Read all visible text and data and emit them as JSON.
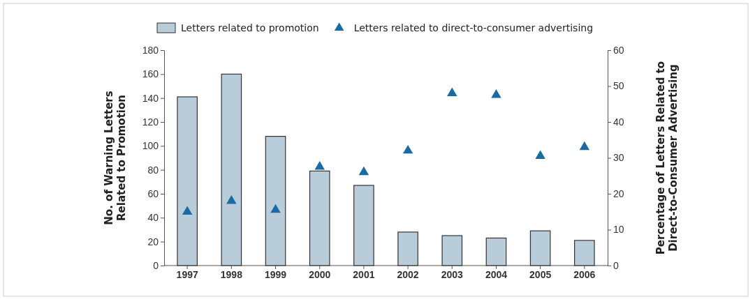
{
  "chart_data": {
    "type": "bar",
    "categories": [
      "1997",
      "1998",
      "1999",
      "2000",
      "2001",
      "2002",
      "2003",
      "2004",
      "2005",
      "2006"
    ],
    "series": [
      {
        "name": "Letters related to promotion",
        "color": "#b8ccd9",
        "values": [
          141,
          160,
          108,
          79,
          67,
          28,
          25,
          23,
          29,
          21
        ]
      },
      {
        "name": "Letters related to direct-to-consumer advertising",
        "type": "scatter",
        "axis": "y2",
        "marker": "triangle",
        "color": "#1a6aa3",
        "values": [
          15,
          18,
          15.5,
          27.5,
          26,
          32,
          48,
          47.5,
          30.5,
          33
        ]
      }
    ],
    "ylabel": "No. of Warning Letters\nRelated to Promotion",
    "y2label": "Percentage of Letters Related to\nDirect-to-Consumer Advertising",
    "ylim": [
      0,
      180
    ],
    "yticks": [
      0,
      20,
      40,
      60,
      80,
      100,
      120,
      140,
      160,
      180
    ],
    "y2lim": [
      0,
      60
    ],
    "y2ticks": [
      0,
      10,
      20,
      30,
      40,
      50,
      60
    ],
    "legend": "top",
    "grid": false
  }
}
